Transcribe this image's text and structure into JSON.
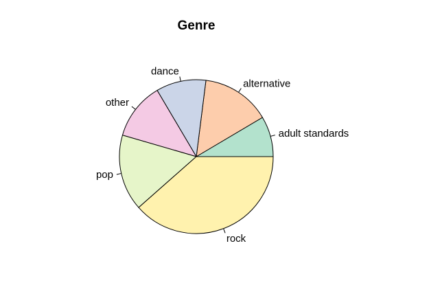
{
  "chart_data": {
    "type": "pie",
    "title": "Genre",
    "direction": "counterclockwise",
    "start_angle_degrees": 0,
    "slices": [
      {
        "label": "adult standards",
        "value": 8.5,
        "color": "#b3e2cd"
      },
      {
        "label": "alternative",
        "value": 14.5,
        "color": "#fdcdac"
      },
      {
        "label": "dance",
        "value": 10.5,
        "color": "#cbd5e8"
      },
      {
        "label": "other",
        "value": 12.0,
        "color": "#f4cae4"
      },
      {
        "label": "pop",
        "value": 16.0,
        "color": "#e6f5c9"
      },
      {
        "label": "rock",
        "value": 38.5,
        "color": "#fff2ae"
      }
    ]
  }
}
